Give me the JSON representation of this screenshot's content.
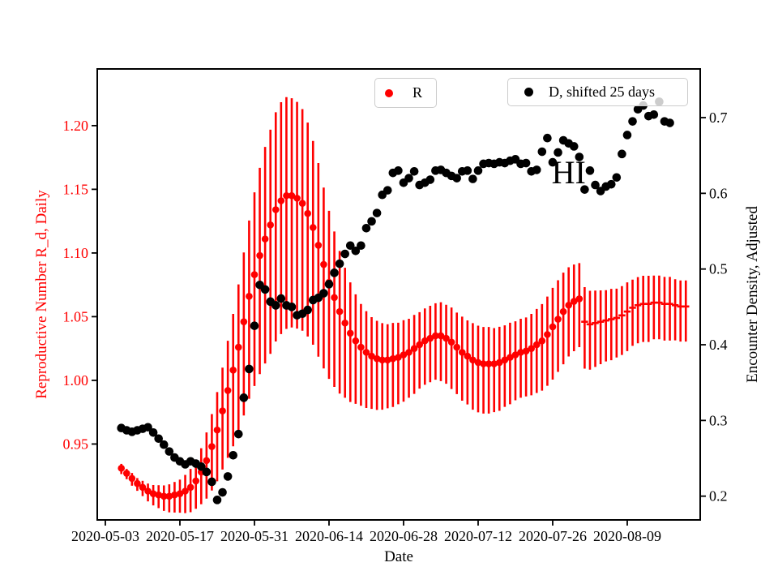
{
  "figure": {
    "background": "#ffffff",
    "colors": {
      "r_accent": "#ff0000",
      "d_accent": "#000000",
      "legend_border": "#cccccc"
    }
  },
  "chart_data": {
    "type": "scatter",
    "title": "",
    "xlabel": "Date",
    "ylabel_left": "Reproductive Number R_d, Daily",
    "ylabel_right": "Encounter Density, Adjusted",
    "grid": false,
    "x_epoch": "2020-05-03",
    "xlim_days": [
      -1.52,
      111.7
    ],
    "ylim_left": [
      0.8904,
      1.2445
    ],
    "ylim_right": [
      0.1686,
      0.7643
    ],
    "x_tick_labels": [
      "2020-05-03",
      "2020-05-17",
      "2020-05-31",
      "2020-06-14",
      "2020-06-28",
      "2020-07-12",
      "2020-07-26",
      "2020-08-09"
    ],
    "left_tick_values": [
      0.95,
      1.0,
      1.05,
      1.1,
      1.15,
      1.2
    ],
    "left_tick_labels": [
      "0.95",
      "1.00",
      "1.05",
      "1.10",
      "1.15",
      "1.20"
    ],
    "right_tick_values": [
      0.2,
      0.3,
      0.4,
      0.5,
      0.6,
      0.7
    ],
    "right_tick_labels": [
      "0.2",
      "0.3",
      "0.4",
      "0.5",
      "0.6",
      "0.7"
    ],
    "annotation": {
      "text": "HI",
      "date": "2020-07-29",
      "value_right": 0.628
    },
    "series": [
      {
        "name": "R",
        "axis": "left",
        "color": "#ff0000",
        "marker": "circle",
        "dash_marker_from": "2020-08-01",
        "start_date": "2020-05-06",
        "cadence_days": 1,
        "values": [
          0.931,
          0.927,
          0.923,
          0.919,
          0.916,
          0.913,
          0.911,
          0.91,
          0.909,
          0.909,
          0.91,
          0.911,
          0.913,
          0.916,
          0.921,
          0.928,
          0.937,
          0.948,
          0.961,
          0.976,
          0.992,
          1.008,
          1.026,
          1.046,
          1.066,
          1.083,
          1.098,
          1.111,
          1.122,
          1.134,
          1.141,
          1.145,
          1.145,
          1.143,
          1.139,
          1.131,
          1.12,
          1.106,
          1.091,
          1.077,
          1.065,
          1.054,
          1.045,
          1.037,
          1.031,
          1.026,
          1.022,
          1.019,
          1.017,
          1.016,
          1.016,
          1.017,
          1.018,
          1.02,
          1.022,
          1.025,
          1.028,
          1.031,
          1.033,
          1.035,
          1.035,
          1.033,
          1.03,
          1.026,
          1.022,
          1.019,
          1.016,
          1.014,
          1.013,
          1.013,
          1.013,
          1.014,
          1.016,
          1.018,
          1.02,
          1.022,
          1.023,
          1.025,
          1.028,
          1.031,
          1.036,
          1.042,
          1.048,
          1.054,
          1.059,
          1.062,
          1.064,
          1.046,
          1.044,
          1.045,
          1.046,
          1.047,
          1.048,
          1.049,
          1.051,
          1.054,
          1.057,
          1.059,
          1.06,
          1.06,
          1.061,
          1.061,
          1.06,
          1.06,
          1.059,
          1.058,
          1.058
        ],
        "yerr": [
          0.004,
          0.004,
          0.005,
          0.005,
          0.006,
          0.007,
          0.008,
          0.009,
          0.01,
          0.011,
          0.012,
          0.013,
          0.015,
          0.017,
          0.019,
          0.022,
          0.026,
          0.03,
          0.035,
          0.04,
          0.046,
          0.052,
          0.058,
          0.064,
          0.07,
          0.076,
          0.081,
          0.085,
          0.088,
          0.09,
          0.091,
          0.091,
          0.09,
          0.089,
          0.087,
          0.084,
          0.08,
          0.076,
          0.071,
          0.066,
          0.061,
          0.056,
          0.051,
          0.047,
          0.043,
          0.04,
          0.038,
          0.036,
          0.035,
          0.034,
          0.033,
          0.033,
          0.032,
          0.032,
          0.031,
          0.031,
          0.03,
          0.03,
          0.03,
          0.03,
          0.031,
          0.031,
          0.032,
          0.032,
          0.033,
          0.033,
          0.034,
          0.034,
          0.034,
          0.034,
          0.033,
          0.033,
          0.032,
          0.032,
          0.031,
          0.031,
          0.031,
          0.032,
          0.033,
          0.034,
          0.035,
          0.036,
          0.036,
          0.036,
          0.035,
          0.034,
          0.033,
          0.032,
          0.031,
          0.03,
          0.029,
          0.028,
          0.028,
          0.027,
          0.027,
          0.027,
          0.026,
          0.026,
          0.026,
          0.026,
          0.025,
          0.025,
          0.025,
          0.025,
          0.024,
          0.024,
          0.024
        ]
      },
      {
        "name": "D, shifted 25 days",
        "axis": "right",
        "color": "#000000",
        "marker": "circle",
        "start_date": "2020-05-06",
        "cadence_days": 1,
        "values": [
          0.29,
          0.287,
          0.285,
          0.287,
          0.289,
          0.291,
          0.284,
          0.276,
          0.268,
          0.259,
          0.251,
          0.246,
          0.242,
          0.246,
          0.243,
          0.239,
          0.232,
          0.219,
          0.195,
          0.205,
          0.226,
          0.254,
          0.282,
          0.33,
          0.368,
          0.425,
          0.479,
          0.473,
          0.457,
          0.452,
          0.461,
          0.452,
          0.45,
          0.439,
          0.441,
          0.446,
          0.459,
          0.462,
          0.468,
          0.48,
          0.495,
          0.507,
          0.52,
          0.531,
          0.524,
          0.531,
          0.554,
          0.563,
          0.574,
          0.598,
          0.604,
          0.627,
          0.63,
          0.614,
          0.62,
          0.629,
          0.611,
          0.614,
          0.618,
          0.63,
          0.631,
          0.627,
          0.623,
          0.62,
          0.629,
          0.63,
          0.619,
          0.63,
          0.639,
          0.64,
          0.639,
          0.641,
          0.64,
          0.643,
          0.645,
          0.639,
          0.64,
          0.629,
          0.631,
          0.655,
          0.673,
          0.641,
          0.654,
          0.67,
          0.666,
          0.662,
          0.648,
          0.605,
          0.63,
          0.611,
          0.603,
          0.609,
          0.612,
          0.621,
          0.652,
          0.677,
          0.695,
          0.711,
          0.716,
          0.702,
          0.704,
          0.721,
          0.695,
          0.693
        ]
      }
    ]
  }
}
